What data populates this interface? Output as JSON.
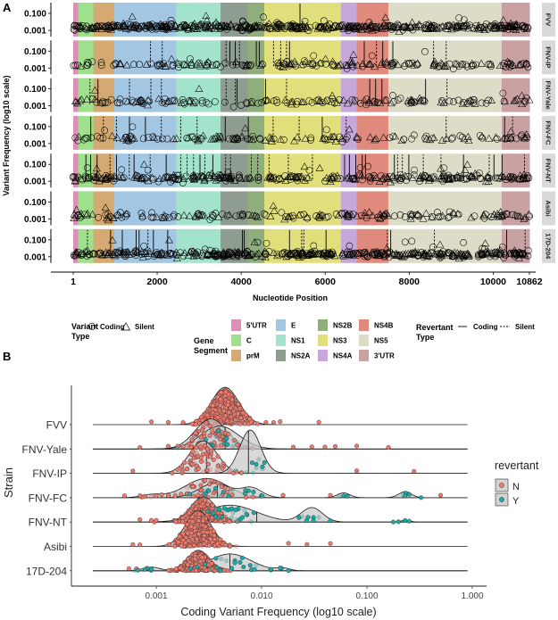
{
  "figure": {
    "panel_a_label": "A",
    "panel_b_label": "B"
  },
  "legend": {
    "variant_type_title": [
      "Variant",
      "Type"
    ],
    "variant_types": [
      "Coding",
      "Silent"
    ],
    "gene_segment_title": [
      "Gene",
      "Segment"
    ],
    "revertant_type_title": [
      "Revertant",
      "Type"
    ],
    "revertant_types": [
      "Coding",
      "Silent"
    ]
  },
  "chart_data": [
    {
      "type": "scatter",
      "title": "",
      "xlabel": "Nucleotide Position",
      "ylabel": "Variant Frequency (log10 scale)",
      "xlim": [
        1,
        10862
      ],
      "x_ticks": [
        1,
        2000,
        4000,
        6000,
        8000,
        10000,
        10862
      ],
      "y_ticks": [
        "0.100",
        "0.001"
      ],
      "y_tick_values": [
        0.1,
        0.001
      ],
      "strains": [
        "FVV",
        "FNV-IP",
        "FNV-Yale",
        "FNV-FC",
        "FNV-NT",
        "Asibi",
        "17D-204"
      ],
      "segments": [
        {
          "name": "5'UTR",
          "start": 1,
          "end": 118,
          "color": "#dd8fb5"
        },
        {
          "name": "C",
          "start": 119,
          "end": 481,
          "color": "#9fe08c"
        },
        {
          "name": "prM",
          "start": 482,
          "end": 973,
          "color": "#d4aa72"
        },
        {
          "name": "E",
          "start": 974,
          "end": 2452,
          "color": "#a3c6e2"
        },
        {
          "name": "NS1",
          "start": 2453,
          "end": 3508,
          "color": "#a3e3cb"
        },
        {
          "name": "NS2A",
          "start": 3509,
          "end": 4159,
          "color": "#8e9d90"
        },
        {
          "name": "NS2B",
          "start": 4160,
          "end": 4549,
          "color": "#90ad7c"
        },
        {
          "name": "NS3",
          "start": 4550,
          "end": 6373,
          "color": "#e1df7c"
        },
        {
          "name": "NS4A",
          "start": 6374,
          "end": 6751,
          "color": "#c6a9da"
        },
        {
          "name": "NS4B",
          "start": 6752,
          "end": 7501,
          "color": "#df8a7c"
        },
        {
          "name": "NS5",
          "start": 7502,
          "end": 10201,
          "color": "#dddcc7"
        },
        {
          "name": "3'UTR",
          "start": 10202,
          "end": 10862,
          "color": "#c9a1a3"
        }
      ],
      "variant_summary": {
        "FVV": {
          "n": 520,
          "typical_freq": 0.0025
        },
        "FNV-IP": {
          "n": 200,
          "typical_freq": 0.0025
        },
        "FNV-Yale": {
          "n": 170,
          "typical_freq": 0.003
        },
        "FNV-FC": {
          "n": 150,
          "typical_freq": 0.004
        },
        "FNV-NT": {
          "n": 330,
          "typical_freq": 0.0025
        },
        "Asibi": {
          "n": 190,
          "typical_freq": 0.0025
        },
        "17D-204": {
          "n": 480,
          "typical_freq": 0.002
        }
      },
      "revertants": {
        "FVV": [
          {
            "pos": 5400,
            "type": "Coding"
          }
        ],
        "FNV-IP": [
          {
            "pos": 1840,
            "type": "Silent"
          },
          {
            "pos": 2120,
            "type": "Silent"
          },
          {
            "pos": 3640,
            "type": "Silent"
          },
          {
            "pos": 3730,
            "type": "Coding"
          },
          {
            "pos": 3860,
            "type": "Coding"
          },
          {
            "pos": 3960,
            "type": "Silent"
          },
          {
            "pos": 4360,
            "type": "Coding"
          },
          {
            "pos": 4430,
            "type": "Coding"
          },
          {
            "pos": 4770,
            "type": "Silent"
          },
          {
            "pos": 4940,
            "type": "Silent"
          },
          {
            "pos": 5080,
            "type": "Silent"
          },
          {
            "pos": 5150,
            "type": "Coding"
          },
          {
            "pos": 6930,
            "type": "Coding"
          },
          {
            "pos": 7220,
            "type": "Silent"
          },
          {
            "pos": 7370,
            "type": "Coding"
          },
          {
            "pos": 7610,
            "type": "Coding"
          },
          {
            "pos": 8580,
            "type": "Silent"
          },
          {
            "pos": 8880,
            "type": "Silent"
          }
        ],
        "FNV-Yale": [
          {
            "pos": 400,
            "type": "Silent"
          },
          {
            "pos": 590,
            "type": "Coding"
          },
          {
            "pos": 1340,
            "type": "Silent"
          },
          {
            "pos": 1850,
            "type": "Silent"
          },
          {
            "pos": 2100,
            "type": "Silent"
          },
          {
            "pos": 3640,
            "type": "Silent"
          },
          {
            "pos": 3860,
            "type": "Silent"
          },
          {
            "pos": 3900,
            "type": "Coding"
          },
          {
            "pos": 4580,
            "type": "Coding"
          },
          {
            "pos": 5080,
            "type": "Silent"
          },
          {
            "pos": 7060,
            "type": "Coding"
          },
          {
            "pos": 7200,
            "type": "Coding"
          },
          {
            "pos": 7350,
            "type": "Coding"
          },
          {
            "pos": 8390,
            "type": "Coding"
          },
          {
            "pos": 8900,
            "type": "Silent"
          }
        ],
        "FNV-FC": [
          {
            "pos": 420,
            "type": "Coding"
          },
          {
            "pos": 720,
            "type": "Silent"
          },
          {
            "pos": 1030,
            "type": "Silent"
          },
          {
            "pos": 1340,
            "type": "Coding"
          },
          {
            "pos": 1720,
            "type": "Coding"
          },
          {
            "pos": 2100,
            "type": "Silent"
          },
          {
            "pos": 2560,
            "type": "Silent"
          },
          {
            "pos": 2950,
            "type": "Silent"
          },
          {
            "pos": 3620,
            "type": "Coding"
          },
          {
            "pos": 4170,
            "type": "Coding"
          },
          {
            "pos": 4760,
            "type": "Silent"
          },
          {
            "pos": 5380,
            "type": "Silent"
          },
          {
            "pos": 5930,
            "type": "Coding"
          },
          {
            "pos": 6500,
            "type": "Silent"
          },
          {
            "pos": 8880,
            "type": "Silent"
          },
          {
            "pos": 10270,
            "type": "Coding"
          },
          {
            "pos": 10460,
            "type": "Silent"
          }
        ],
        "FNV-NT": [
          {
            "pos": 303,
            "type": "Coding"
          },
          {
            "pos": 418,
            "type": "Coding"
          },
          {
            "pos": 570,
            "type": "Coding"
          },
          {
            "pos": 877,
            "type": "Silent"
          },
          {
            "pos": 1030,
            "type": "Coding"
          },
          {
            "pos": 1336,
            "type": "Silent"
          },
          {
            "pos": 1450,
            "type": "Coding"
          },
          {
            "pos": 1833,
            "type": "Silent"
          },
          {
            "pos": 2215,
            "type": "Coding"
          },
          {
            "pos": 2560,
            "type": "Silent"
          },
          {
            "pos": 2713,
            "type": "Silent"
          },
          {
            "pos": 2866,
            "type": "Silent"
          },
          {
            "pos": 3019,
            "type": "Coding"
          },
          {
            "pos": 3133,
            "type": "Silent"
          },
          {
            "pos": 3325,
            "type": "Coding"
          },
          {
            "pos": 3630,
            "type": "Silent"
          },
          {
            "pos": 3745,
            "type": "Silent"
          },
          {
            "pos": 4242,
            "type": "Silent"
          },
          {
            "pos": 4395,
            "type": "Silent"
          },
          {
            "pos": 4663,
            "type": "Silent"
          },
          {
            "pos": 5122,
            "type": "Silent"
          },
          {
            "pos": 5696,
            "type": "Silent"
          },
          {
            "pos": 6461,
            "type": "Coding"
          },
          {
            "pos": 6576,
            "type": "Coding"
          },
          {
            "pos": 6729,
            "type": "Coding"
          },
          {
            "pos": 6882,
            "type": "Coding"
          },
          {
            "pos": 6958,
            "type": "Coding"
          },
          {
            "pos": 7647,
            "type": "Coding"
          },
          {
            "pos": 7723,
            "type": "Silent"
          },
          {
            "pos": 7838,
            "type": "Silent"
          },
          {
            "pos": 7991,
            "type": "Coding"
          },
          {
            "pos": 8335,
            "type": "Silent"
          },
          {
            "pos": 8756,
            "type": "Silent"
          },
          {
            "pos": 9292,
            "type": "Coding"
          },
          {
            "pos": 9904,
            "type": "Silent"
          },
          {
            "pos": 10018,
            "type": "Coding"
          },
          {
            "pos": 10210,
            "type": "Coding"
          },
          {
            "pos": 10745,
            "type": "Silent"
          }
        ],
        "Asibi": [],
        "17D-204": [
          {
            "pos": 340,
            "type": "Silent"
          },
          {
            "pos": 890,
            "type": "Coding"
          },
          {
            "pos": 1170,
            "type": "Coding"
          },
          {
            "pos": 1500,
            "type": "Coding"
          },
          {
            "pos": 1570,
            "type": "Coding"
          },
          {
            "pos": 1780,
            "type": "Silent"
          },
          {
            "pos": 1910,
            "type": "Coding"
          },
          {
            "pos": 2250,
            "type": "Coding"
          },
          {
            "pos": 4030,
            "type": "Coding"
          },
          {
            "pos": 4070,
            "type": "Coding"
          },
          {
            "pos": 5150,
            "type": "Coding"
          },
          {
            "pos": 5440,
            "type": "Silent"
          },
          {
            "pos": 5490,
            "type": "Silent"
          },
          {
            "pos": 6020,
            "type": "Coding"
          },
          {
            "pos": 7480,
            "type": "Silent"
          },
          {
            "pos": 7560,
            "type": "Coding"
          },
          {
            "pos": 8600,
            "type": "Silent"
          },
          {
            "pos": 10320,
            "type": "Coding"
          },
          {
            "pos": 10760,
            "type": "Silent"
          }
        ]
      }
    },
    {
      "type": "ridgeline",
      "title": "",
      "xlabel": "Coding Variant Frequency (log10 scale)",
      "ylabel": "Strain",
      "x_scale": "log10",
      "xlim": [
        0.00025,
        0.9
      ],
      "x_ticks": [
        "0.001",
        "0.010",
        "0.100",
        "1.000"
      ],
      "x_tick_values": [
        0.001,
        0.01,
        0.1,
        1
      ],
      "legend_title": "revertant",
      "legend_placement": "right",
      "groups": [
        {
          "name": "N",
          "color": "#f07a6c"
        },
        {
          "name": "Y",
          "color": "#1aaba6"
        }
      ],
      "strains": [
        {
          "name": "FVV",
          "N": {
            "peaks": [
              {
                "mu": 0.0045,
                "sd": 0.13,
                "h": 1.55
              }
            ],
            "n": 450,
            "outliers": [
              0.0009,
              0.0013,
              0.0018,
              0.011,
              0.013,
              0.015,
              0.035
            ]
          },
          "Y": null
        },
        {
          "name": "FNV-Yale",
          "N": {
            "peaks": [
              {
                "mu": 0.0033,
                "sd": 0.15,
                "h": 1.25
              }
            ],
            "n": 70,
            "outliers": [
              0.0007,
              0.0013,
              0.02,
              0.03,
              0.04,
              0.05,
              0.08,
              0.16
            ]
          },
          "Y": {
            "peaks": [
              {
                "mu": 0.004,
                "sd": 0.18,
                "h": 0.95
              }
            ],
            "n": 14,
            "median": 0.0045,
            "outliers": []
          }
        },
        {
          "name": "FNV-IP",
          "N": {
            "peaks": [
              {
                "mu": 0.0028,
                "sd": 0.13,
                "h": 1.35
              }
            ],
            "n": 70,
            "median": 0.003,
            "outliers": [
              0.0006,
              0.08,
              0.28
            ]
          },
          "Y": {
            "peaks": [
              {
                "mu": 0.0078,
                "sd": 0.1,
                "h": 1.8
              }
            ],
            "n": 10,
            "median": 0.0075,
            "outliers": []
          }
        },
        {
          "name": "FNV-FC",
          "N": {
            "peaks": [
              {
                "mu": 0.003,
                "sd": 0.2,
                "h": 0.8
              },
              {
                "mu": 0.0009,
                "sd": 0.1,
                "h": 0.12
              }
            ],
            "n": 45,
            "outliers": [
              0.0005,
              0.0007,
              0.001,
              0.0013,
              0.016,
              0.045,
              0.5
            ]
          },
          "Y": {
            "peaks": [
              {
                "mu": 0.0036,
                "sd": 0.15,
                "h": 0.6
              },
              {
                "mu": 0.008,
                "sd": 0.1,
                "h": 0.4
              },
              {
                "mu": 0.06,
                "sd": 0.06,
                "h": 0.2
              },
              {
                "mu": 0.23,
                "sd": 0.06,
                "h": 0.25
              }
            ],
            "n": 22,
            "median": 0.0038,
            "outliers": [
              0.06,
              0.23
            ]
          }
        },
        {
          "name": "FNV-NT",
          "N": {
            "peaks": [
              {
                "mu": 0.0028,
                "sd": 0.12,
                "h": 1.05
              }
            ],
            "n": 300,
            "outliers": [
              0.0007,
              0.0009,
              0.001
            ]
          },
          "Y": {
            "peaks": [
              {
                "mu": 0.005,
                "sd": 0.25,
                "h": 0.7
              },
              {
                "mu": 0.03,
                "sd": 0.1,
                "h": 0.6
              },
              {
                "mu": 0.23,
                "sd": 0.05,
                "h": 0.06
              }
            ],
            "n": 40,
            "median": 0.009,
            "outliers": [
              0.23
            ]
          }
        },
        {
          "name": "Asibi",
          "N": {
            "peaks": [
              {
                "mu": 0.0025,
                "sd": 0.12,
                "h": 1.5
              }
            ],
            "n": 400,
            "outliers": [
              0.0006,
              0.0007,
              0.018,
              0.027,
              0.045
            ]
          },
          "Y": null
        },
        {
          "name": "17D-204",
          "N": {
            "peaks": [
              {
                "mu": 0.0025,
                "sd": 0.1,
                "h": 0.85
              }
            ],
            "n": 480,
            "outliers": [
              0.00055,
              0.00065
            ]
          },
          "Y": {
            "peaks": [
              {
                "mu": 0.0009,
                "sd": 0.08,
                "h": 0.15
              },
              {
                "mu": 0.005,
                "sd": 0.2,
                "h": 0.7
              },
              {
                "mu": 0.016,
                "sd": 0.06,
                "h": 0.1
              }
            ],
            "n": 30,
            "median": 0.005,
            "outliers": [
              0.0009,
              0.015
            ]
          }
        }
      ]
    }
  ]
}
